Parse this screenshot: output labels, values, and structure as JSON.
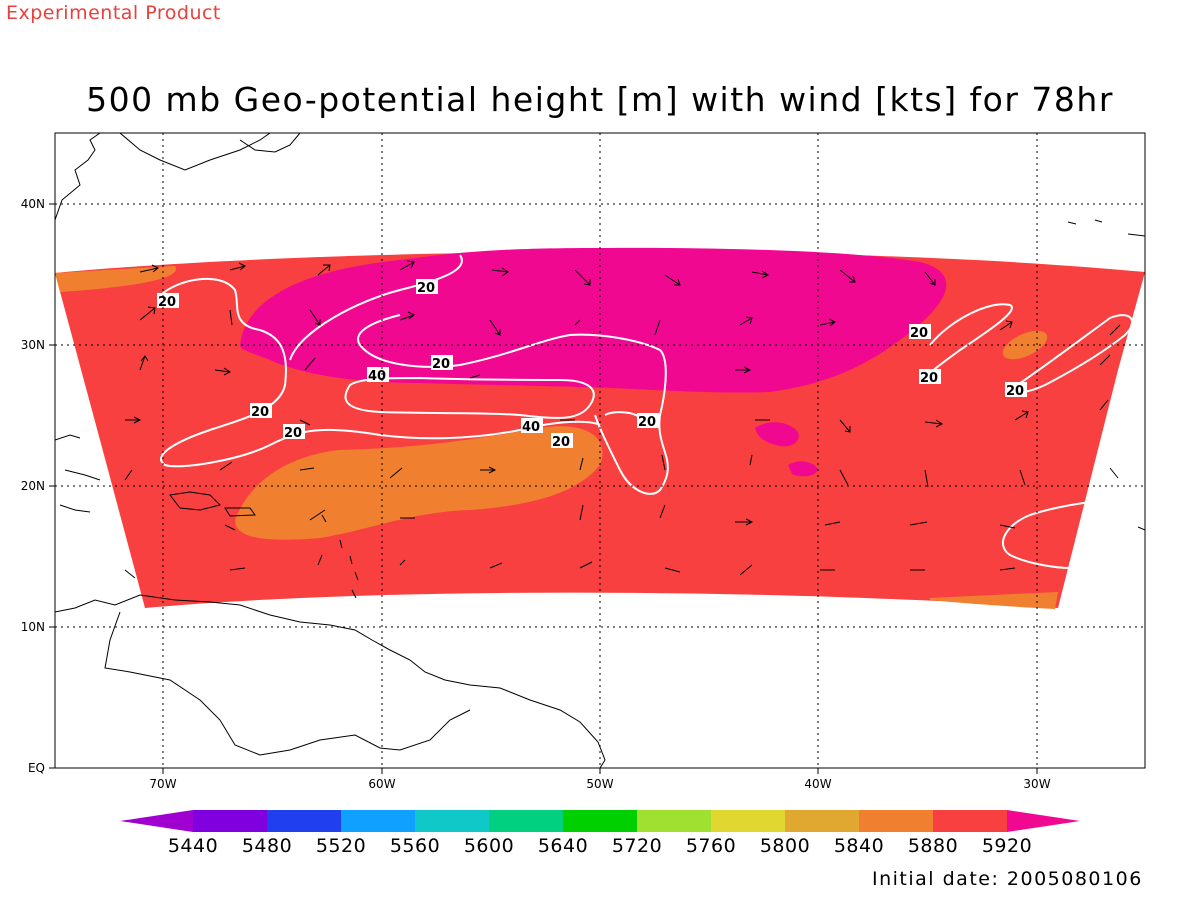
{
  "header": {
    "experimental": "Experimental Product",
    "title": "500 mb Geo-potential height [m] with wind [kts] for 78hr"
  },
  "footer": {
    "initial_date": "Initial date: 2005080106"
  },
  "map": {
    "lat_range": [
      0,
      45
    ],
    "lon_range": [
      -75,
      -25
    ],
    "lat_ticks": [
      "EQ",
      "10N",
      "20N",
      "30N",
      "40N"
    ],
    "lon_ticks": [
      "70W",
      "60W",
      "50W",
      "40W",
      "30W"
    ],
    "gridlines": "dotted",
    "coastline_color": "#000000",
    "contour_color": "#ffffff",
    "contour_labels": [
      "20",
      "20",
      "20",
      "20",
      "20",
      "40",
      "40",
      "20",
      "20",
      "20",
      "20",
      "20"
    ]
  },
  "colorbar": {
    "colors": [
      "#a000d0",
      "#8000e0",
      "#2040f0",
      "#10a0ff",
      "#10c8c8",
      "#00d080",
      "#00d000",
      "#a0e030",
      "#e0d830",
      "#e0a830",
      "#f08030",
      "#f84040",
      "#f00890"
    ],
    "labels": [
      "5440",
      "5480",
      "5520",
      "5560",
      "5600",
      "5640",
      "5720",
      "5760",
      "5800",
      "5840",
      "5880",
      "5920"
    ]
  }
}
